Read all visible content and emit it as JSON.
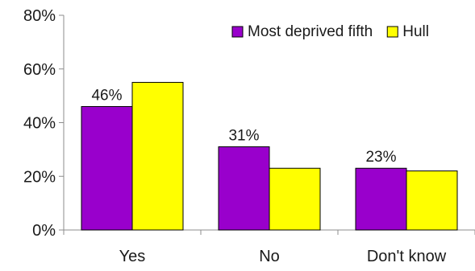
{
  "chart_data": {
    "type": "bar",
    "title": "",
    "xlabel": "",
    "ylabel": "",
    "categories": [
      "Yes",
      "No",
      "Don't know"
    ],
    "series": [
      {
        "name": "Most deprived fifth",
        "color": "#9900cc",
        "values": [
          46,
          31,
          23
        ],
        "data_labels": [
          "46%",
          "31%",
          "23%"
        ]
      },
      {
        "name": "Hull",
        "color": "#ffff00",
        "values": [
          55,
          23,
          22
        ],
        "data_labels": []
      }
    ],
    "ylim": [
      0,
      80
    ],
    "yticks": [
      0,
      20,
      40,
      60,
      80
    ],
    "ytick_labels": [
      "0%",
      "20%",
      "40%",
      "60%",
      "80%"
    ],
    "grid": false,
    "legend_position": "top-right"
  }
}
